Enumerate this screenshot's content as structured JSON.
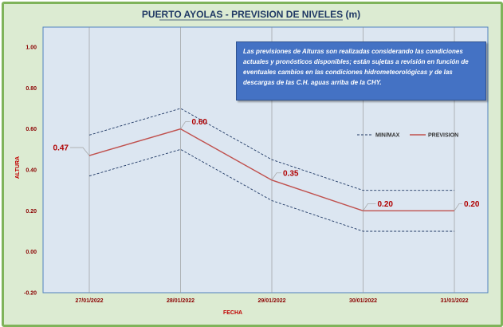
{
  "chart_data": {
    "type": "line",
    "title": "PUERTO AYOLAS - PREVISION DE NIVELES (m)",
    "xlabel": "FECHA",
    "ylabel": "ALTURA",
    "categories": [
      "27/01/2022",
      "28/01/2022",
      "29/01/2022",
      "30/01/2022",
      "31/01/2022"
    ],
    "ylim": [
      -0.2,
      1.0
    ],
    "yticks": [
      "1.00",
      "0.80",
      "0.60",
      "0.40",
      "0.20",
      "0.00",
      "-0.20"
    ],
    "grid": "vertical",
    "legend_position": "top-right",
    "series": [
      {
        "name": "PREVISION",
        "values": [
          0.47,
          0.6,
          0.35,
          0.2,
          0.2
        ],
        "color": "#c0504d",
        "style": "solid"
      },
      {
        "name": "MIN/MAX",
        "role": "max",
        "values": [
          0.57,
          0.7,
          0.45,
          0.3,
          0.3
        ],
        "color": "#1f3864",
        "style": "dashed"
      },
      {
        "name": "MIN/MAX",
        "role": "min",
        "values": [
          0.37,
          0.5,
          0.25,
          0.1,
          0.1
        ],
        "color": "#1f3864",
        "style": "dashed"
      }
    ],
    "data_labels": [
      "0.47",
      "0.60",
      "0.35",
      "0.20",
      "0.20"
    ],
    "legend": [
      "MIN/MAX",
      "PREVISION"
    ],
    "annotation": "Las previsiones de Alturas son realizadas considerando las condiciones actuales y pronósticos disponibles; están sujetas a revisión en función de eventuales cambios en las condiciones hidrometeorológicas y de las descargas de las C.H. aguas arriba de la CHY."
  },
  "colors": {
    "frame_bg": "#dcebd2",
    "frame_border": "#7fb35a",
    "plot_bg": "#dce6f1",
    "plot_border": "#4f81bd",
    "note_bg": "#4472c4"
  }
}
